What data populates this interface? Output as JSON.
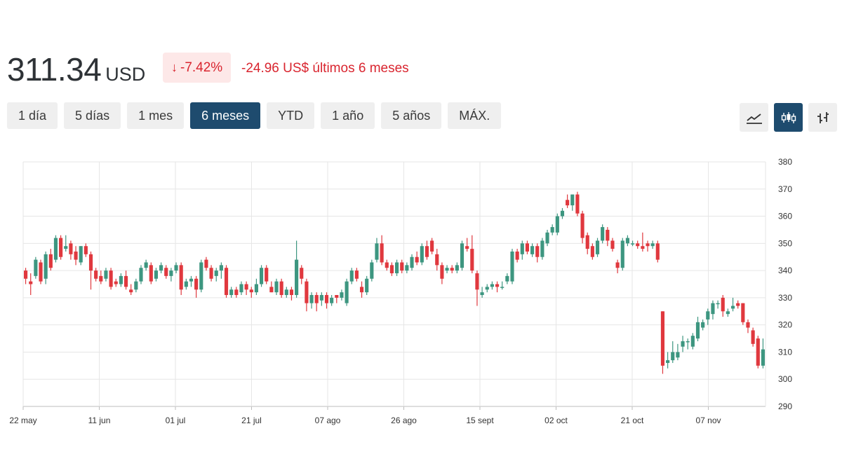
{
  "header": {
    "price": "311.34",
    "currency": "USD",
    "change_arrow": "↓",
    "change_percent": "-7.42%",
    "change_text": "-24.96 US$ últimos 6 meses",
    "negative_color": "#d9252f"
  },
  "ranges": [
    {
      "label": "1 día"
    },
    {
      "label": "5 días"
    },
    {
      "label": "1 mes"
    },
    {
      "label": "6 meses",
      "active": true
    },
    {
      "label": "YTD"
    },
    {
      "label": "1 año"
    },
    {
      "label": "5 años"
    },
    {
      "label": "MÁX."
    }
  ],
  "chart_types": [
    {
      "icon": "line-chart-icon"
    },
    {
      "icon": "candlestick-icon",
      "active": true
    },
    {
      "icon": "ohlc-bar-icon"
    }
  ],
  "chart_data": {
    "type": "candlestick",
    "up_color": "#3d9680",
    "down_color": "#e0383e",
    "ylim": [
      290,
      380
    ],
    "y_ticks": [
      290,
      300,
      310,
      320,
      330,
      340,
      350,
      360,
      370,
      380
    ],
    "x_ticks": [
      "22 may",
      "11 jun",
      "01 jul",
      "21 jul",
      "07 ago",
      "26 ago",
      "15 sept",
      "02 oct",
      "21 oct",
      "07 nov"
    ],
    "grid": true,
    "candles": [
      [
        340,
        337,
        341,
        335
      ],
      [
        336,
        335,
        339,
        331
      ],
      [
        338,
        344,
        345,
        337
      ],
      [
        343,
        336,
        344,
        335
      ],
      [
        337,
        346,
        347,
        335
      ],
      [
        346,
        341,
        348,
        340
      ],
      [
        344,
        352,
        353,
        343
      ],
      [
        352,
        345,
        353,
        344
      ],
      [
        348,
        349,
        353,
        347
      ],
      [
        350,
        346,
        351,
        344
      ],
      [
        347,
        344,
        349,
        342
      ],
      [
        343,
        349,
        349,
        342
      ],
      [
        349,
        346,
        350,
        345
      ],
      [
        346,
        340,
        347,
        333
      ],
      [
        340,
        337,
        341,
        336
      ],
      [
        338,
        336,
        340,
        335
      ],
      [
        337,
        340,
        341,
        336
      ],
      [
        340,
        334,
        341,
        333
      ],
      [
        336,
        335,
        337,
        334
      ],
      [
        335,
        338,
        339,
        334
      ],
      [
        338,
        334,
        340,
        333
      ],
      [
        333,
        332,
        335,
        331
      ],
      [
        333,
        336,
        337,
        332
      ],
      [
        336,
        341,
        342,
        335
      ],
      [
        341,
        343,
        344,
        340
      ],
      [
        342,
        336,
        343,
        335
      ],
      [
        337,
        340,
        341,
        336
      ],
      [
        340,
        342,
        343,
        339
      ],
      [
        341,
        338,
        342,
        337
      ],
      [
        338,
        340,
        341,
        336
      ],
      [
        340,
        342,
        343,
        339
      ],
      [
        342,
        333,
        343,
        331
      ],
      [
        334,
        336,
        337,
        333
      ],
      [
        336,
        337,
        338,
        334
      ],
      [
        337,
        333,
        338,
        330
      ],
      [
        333,
        343,
        344,
        332
      ],
      [
        344,
        341,
        345,
        340
      ],
      [
        341,
        337,
        342,
        336
      ],
      [
        338,
        340,
        341,
        336
      ],
      [
        340,
        342,
        343,
        337
      ],
      [
        341,
        331,
        342,
        330
      ],
      [
        331,
        333,
        334,
        330
      ],
      [
        333,
        331,
        334,
        330
      ],
      [
        332,
        335,
        336,
        331
      ],
      [
        335,
        333,
        336,
        331
      ],
      [
        333,
        332,
        334,
        330
      ],
      [
        332,
        335,
        337,
        331
      ],
      [
        335,
        341,
        342,
        334
      ],
      [
        341,
        336,
        342,
        335
      ],
      [
        334,
        332,
        336,
        332
      ],
      [
        332,
        336,
        337,
        331
      ],
      [
        336,
        331,
        337,
        330
      ],
      [
        331,
        333,
        334,
        330
      ],
      [
        333,
        331,
        334,
        329
      ],
      [
        331,
        344,
        351,
        330
      ],
      [
        341,
        337,
        342,
        335
      ],
      [
        336,
        328,
        337,
        325
      ],
      [
        328,
        331,
        332,
        326
      ],
      [
        331,
        328,
        332,
        325
      ],
      [
        329,
        331,
        332,
        327
      ],
      [
        331,
        328,
        332,
        326
      ],
      [
        328,
        330,
        331,
        327
      ],
      [
        331,
        330,
        331,
        328
      ],
      [
        330,
        332,
        333,
        329
      ],
      [
        328,
        336,
        337,
        327
      ],
      [
        336,
        340,
        341,
        335
      ],
      [
        340,
        337,
        341,
        336
      ],
      [
        334,
        332,
        336,
        330
      ],
      [
        332,
        337,
        338,
        331
      ],
      [
        337,
        343,
        344,
        336
      ],
      [
        344,
        350,
        352,
        343
      ],
      [
        350,
        343,
        353,
        342
      ],
      [
        343,
        341,
        344,
        340
      ],
      [
        342,
        339,
        343,
        338
      ],
      [
        339,
        343,
        344,
        338
      ],
      [
        343,
        340,
        344,
        339
      ],
      [
        340,
        342,
        343,
        339
      ],
      [
        341,
        345,
        346,
        340
      ],
      [
        345,
        343,
        347,
        342
      ],
      [
        343,
        349,
        350,
        342
      ],
      [
        349,
        345,
        351,
        344
      ],
      [
        351,
        347,
        352,
        346
      ],
      [
        346,
        342,
        348,
        340
      ],
      [
        342,
        337,
        343,
        335
      ],
      [
        340,
        341,
        342,
        339
      ],
      [
        341,
        340,
        342,
        339
      ],
      [
        340,
        342,
        343,
        339
      ],
      [
        341,
        350,
        351,
        340
      ],
      [
        349,
        348,
        352,
        347
      ],
      [
        348,
        340,
        353,
        339
      ],
      [
        339,
        333,
        340,
        327
      ],
      [
        331,
        332,
        334,
        330
      ],
      [
        333,
        334,
        335,
        332
      ],
      [
        334,
        335,
        336,
        333
      ],
      [
        335,
        334,
        336,
        332
      ],
      [
        334,
        334,
        336,
        333
      ],
      [
        336,
        338,
        339,
        335
      ],
      [
        336,
        347,
        348,
        335
      ],
      [
        347,
        344,
        348,
        343
      ],
      [
        346,
        350,
        351,
        344
      ],
      [
        350,
        347,
        351,
        346
      ],
      [
        346,
        349,
        350,
        345
      ],
      [
        349,
        345,
        350,
        343
      ],
      [
        345,
        351,
        352,
        344
      ],
      [
        350,
        354,
        355,
        349
      ],
      [
        354,
        356,
        357,
        353
      ],
      [
        354,
        360,
        361,
        353
      ],
      [
        360,
        362,
        363,
        359
      ],
      [
        366,
        364,
        368,
        363
      ],
      [
        364,
        368,
        368,
        362
      ],
      [
        368,
        361,
        369,
        360
      ],
      [
        361,
        352,
        362,
        350
      ],
      [
        353,
        348,
        354,
        346
      ],
      [
        349,
        345,
        350,
        344
      ],
      [
        346,
        351,
        352,
        345
      ],
      [
        351,
        356,
        357,
        350
      ],
      [
        355,
        351,
        356,
        349
      ],
      [
        351,
        348,
        352,
        347
      ],
      [
        343,
        341,
        344,
        339
      ],
      [
        341,
        351,
        352,
        340
      ],
      [
        350,
        352,
        353,
        349
      ],
      [
        350,
        350,
        351,
        349
      ],
      [
        350,
        349,
        351,
        348
      ],
      [
        349,
        348,
        354,
        347
      ],
      [
        350,
        349,
        351,
        347
      ],
      [
        349,
        350,
        351,
        348
      ],
      [
        350,
        344,
        351,
        343
      ],
      [
        325,
        305,
        325,
        302
      ],
      [
        306,
        307,
        310,
        304
      ],
      [
        307,
        310,
        314,
        306
      ],
      [
        308,
        310,
        313,
        307
      ],
      [
        312,
        314,
        316,
        310
      ],
      [
        314,
        314,
        315,
        311
      ],
      [
        312,
        316,
        317,
        311
      ],
      [
        315,
        321,
        323,
        314
      ],
      [
        319,
        321,
        322,
        318
      ],
      [
        322,
        325,
        326,
        320
      ],
      [
        324,
        328,
        329,
        322
      ],
      [
        328,
        328,
        329,
        326
      ],
      [
        330,
        325,
        331,
        323
      ],
      [
        324,
        325,
        326,
        323
      ],
      [
        326,
        327,
        330,
        325
      ],
      [
        328,
        327,
        329,
        326
      ],
      [
        328,
        321,
        328,
        320
      ],
      [
        321,
        319,
        322,
        317
      ],
      [
        318,
        313,
        319,
        312
      ],
      [
        315,
        305,
        316,
        304
      ],
      [
        305,
        311,
        315,
        304
      ]
    ]
  }
}
